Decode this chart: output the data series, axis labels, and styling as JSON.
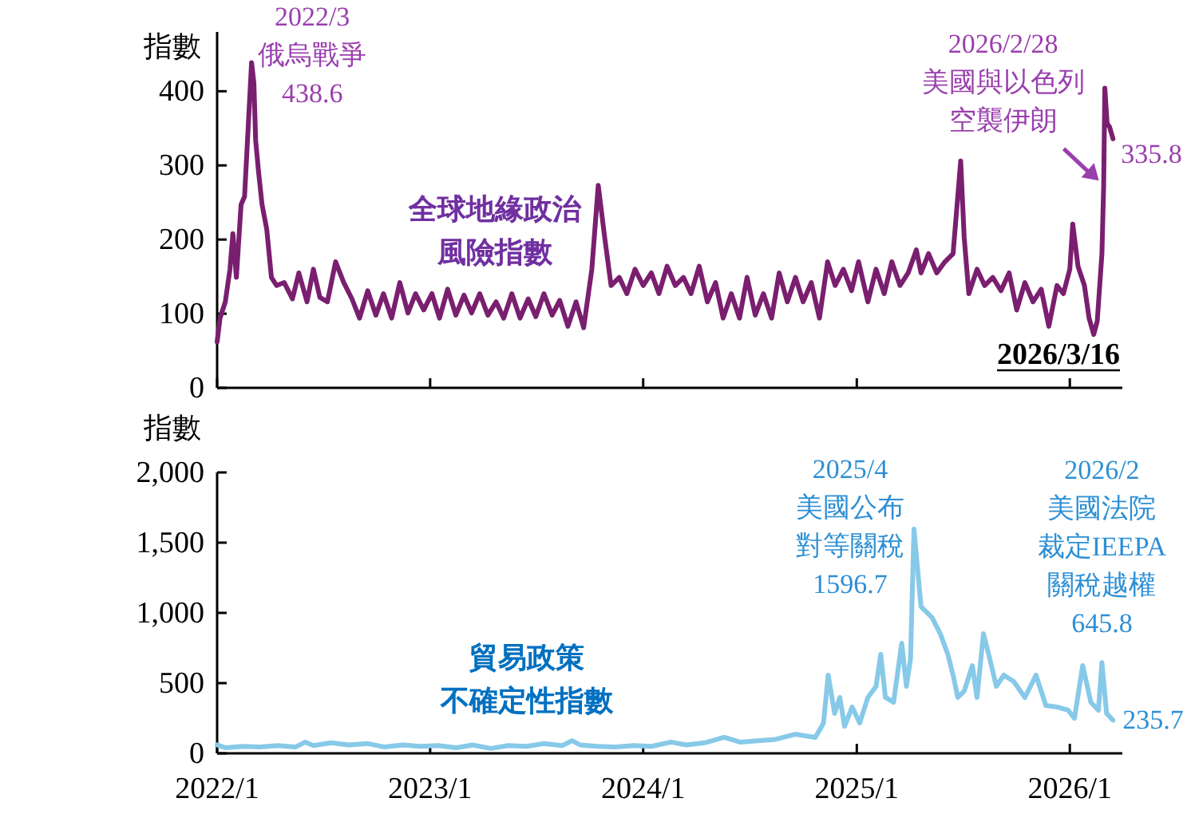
{
  "chart_data": [
    {
      "type": "line",
      "ylabel": "指數",
      "xlim": [
        "2022-01-01",
        "2026-04-01"
      ],
      "ylim": [
        0,
        480
      ],
      "yticks": [
        0,
        100,
        200,
        300,
        400
      ],
      "xticks": [
        {
          "value": "2022-01-01",
          "label": null
        },
        {
          "value": "2023-01-01",
          "label": null
        },
        {
          "value": "2024-01-01",
          "label": null
        },
        {
          "value": "2025-01-01",
          "label": null
        },
        {
          "value": "2026-01-01",
          "label": null
        }
      ],
      "tick_labels": "y",
      "grid": false,
      "annotations": [
        {
          "text": "2022/3\n俄烏戰爭\n438.6",
          "x": "2022-03-01",
          "y": 438.6
        },
        {
          "text": "2026/2/28\n美國與以色列空襲伊朗",
          "x": "2026-02-28",
          "y": 273
        },
        {
          "text": "335.8",
          "x": "2026-03-16",
          "y": 335.8
        },
        "2026/3/16"
      ],
      "series": [
        {
          "name": "全球地緣政治風險指數",
          "color": "#7a1f6f",
          "x": [
            "2022-01-01",
            "2022-01-06",
            "2022-01-15",
            "2022-01-23",
            "2022-01-28",
            "2022-02-03",
            "2022-02-11",
            "2022-02-17",
            "2022-03-01",
            "2022-03-05",
            "2022-03-08",
            "2022-03-13",
            "2022-03-19",
            "2022-03-27",
            "2022-04-04",
            "2022-04-13",
            "2022-04-26",
            "2022-05-10",
            "2022-05-21",
            "2022-06-04",
            "2022-06-15",
            "2022-06-26",
            "2022-07-09",
            "2022-07-23",
            "2022-08-06",
            "2022-08-20",
            "2022-09-02",
            "2022-09-16",
            "2022-09-30",
            "2022-10-13",
            "2022-10-27",
            "2022-11-10",
            "2022-11-24",
            "2022-12-07",
            "2022-12-21",
            "2023-01-04",
            "2023-01-17",
            "2023-01-31",
            "2023-02-14",
            "2023-02-28",
            "2023-03-13",
            "2023-03-27",
            "2023-04-10",
            "2023-04-24",
            "2023-05-07",
            "2023-05-21",
            "2023-06-04",
            "2023-06-18",
            "2023-07-01",
            "2023-07-15",
            "2023-07-29",
            "2023-08-11",
            "2023-08-25",
            "2023-09-08",
            "2023-09-21",
            "2023-10-05",
            "2023-10-16",
            "2023-10-27",
            "2023-11-07",
            "2023-11-21",
            "2023-12-04",
            "2023-12-18",
            "2024-01-01",
            "2024-01-15",
            "2024-01-28",
            "2024-02-11",
            "2024-02-25",
            "2024-03-10",
            "2024-03-23",
            "2024-04-06",
            "2024-04-20",
            "2024-05-04",
            "2024-05-17",
            "2024-05-31",
            "2024-06-14",
            "2024-06-27",
            "2024-07-11",
            "2024-07-25",
            "2024-08-08",
            "2024-08-21",
            "2024-09-04",
            "2024-09-18",
            "2024-10-01",
            "2024-10-15",
            "2024-10-29",
            "2024-11-12",
            "2024-11-25",
            "2024-12-09",
            "2024-12-23",
            "2025-01-04",
            "2025-01-20",
            "2025-02-03",
            "2025-02-17",
            "2025-03-02",
            "2025-03-16",
            "2025-03-30",
            "2025-04-13",
            "2025-04-21",
            "2025-05-04",
            "2025-05-18",
            "2025-06-01",
            "2025-06-15",
            "2025-06-23",
            "2025-06-28",
            "2025-07-04",
            "2025-07-12",
            "2025-07-26",
            "2025-08-08",
            "2025-08-22",
            "2025-09-05",
            "2025-09-19",
            "2025-10-02",
            "2025-10-16",
            "2025-10-30",
            "2025-11-13",
            "2025-11-26",
            "2025-12-10",
            "2025-12-21",
            "2026-01-01",
            "2026-01-06",
            "2026-01-15",
            "2026-01-26",
            "2026-02-03",
            "2026-02-11",
            "2026-02-17",
            "2026-02-25",
            "2026-02-28",
            "2026-03-02",
            "2026-03-06",
            "2026-03-10",
            "2026-03-16"
          ],
          "values": [
            62,
            94,
            116,
            160,
            208,
            149,
            247,
            258,
            438.6,
            411,
            334,
            291,
            247,
            214,
            149,
            138,
            142,
            120,
            155,
            116,
            160,
            122,
            116,
            170,
            142,
            120,
            94,
            131,
            98,
            127,
            94,
            142,
            101,
            127,
            105,
            127,
            94,
            133,
            98,
            125,
            101,
            127,
            98,
            116,
            94,
            127,
            94,
            120,
            96,
            127,
            98,
            118,
            83,
            116,
            81,
            160,
            273,
            203,
            138,
            149,
            127,
            160,
            138,
            155,
            127,
            164,
            138,
            149,
            127,
            164,
            116,
            142,
            94,
            127,
            94,
            149,
            98,
            127,
            94,
            155,
            116,
            149,
            116,
            142,
            94,
            170,
            138,
            160,
            131,
            170,
            116,
            160,
            127,
            170,
            138,
            155,
            186,
            155,
            181,
            155,
            170,
            181,
            258,
            306,
            203,
            127,
            160,
            138,
            149,
            131,
            155,
            105,
            142,
            116,
            133,
            83,
            138,
            127,
            160,
            221,
            164,
            138,
            94,
            72,
            90,
            181,
            273,
            404,
            356,
            352,
            335.8
          ]
        }
      ]
    },
    {
      "type": "line",
      "ylabel": "指數",
      "xlim": [
        "2022-01-01",
        "2026-04-01"
      ],
      "ylim": [
        0,
        2000
      ],
      "yticks": [
        0,
        500,
        {
          "value": 1000,
          "label": "1,000"
        },
        {
          "value": 1500,
          "label": "1,500"
        },
        {
          "value": 2000,
          "label": "2,000"
        }
      ],
      "xticks": [
        {
          "value": "2022-01-01",
          "label": "2022/1"
        },
        {
          "value": "2023-01-01",
          "label": "2023/1"
        },
        {
          "value": "2024-01-01",
          "label": "2024/1"
        },
        {
          "value": "2025-01-01",
          "label": "2025/1"
        },
        {
          "value": "2026-01-01",
          "label": "2026/1"
        }
      ],
      "grid": false,
      "annotations": [
        {
          "text": "2025/4\n美國公布對等關稅\n1596.7",
          "x": "2025-04-09",
          "y": 1596.7
        },
        {
          "text": "2026/2\n美國法院裁定IEEPA關稅越權\n645.8",
          "x": "2026-02-25",
          "y": 645.8
        },
        {
          "text": "235.7",
          "x": "2026-03-16",
          "y": 235.7
        }
      ],
      "series": [
        {
          "name": "貿易政策不確定性指數",
          "color": "#87c9e8",
          "x": [
            "2022-01-01",
            "2022-01-15",
            "2022-02-15",
            "2022-03-15",
            "2022-04-15",
            "2022-05-15",
            "2022-06-01",
            "2022-06-15",
            "2022-07-15",
            "2022-08-15",
            "2022-09-15",
            "2022-10-15",
            "2022-11-15",
            "2022-12-15",
            "2023-01-15",
            "2023-02-15",
            "2023-03-15",
            "2023-04-15",
            "2023-05-15",
            "2023-06-15",
            "2023-07-15",
            "2023-08-15",
            "2023-09-01",
            "2023-09-15",
            "2023-10-15",
            "2023-11-15",
            "2023-12-15",
            "2024-01-15",
            "2024-02-18",
            "2024-03-15",
            "2024-04-15",
            "2024-05-19",
            "2024-06-15",
            "2024-07-15",
            "2024-08-15",
            "2024-09-17",
            "2024-10-22",
            "2024-11-05",
            "2024-11-13",
            "2024-11-24",
            "2024-12-03",
            "2024-12-11",
            "2024-12-24",
            "2025-01-06",
            "2025-01-20",
            "2025-02-03",
            "2025-02-11",
            "2025-02-19",
            "2025-03-05",
            "2025-03-19",
            "2025-03-27",
            "2025-04-03",
            "2025-04-09",
            "2025-04-21",
            "2025-05-10",
            "2025-05-24",
            "2025-06-06",
            "2025-06-15",
            "2025-06-23",
            "2025-07-04",
            "2025-07-18",
            "2025-07-26",
            "2025-08-06",
            "2025-08-17",
            "2025-08-28",
            "2025-09-10",
            "2025-09-27",
            "2025-10-16",
            "2025-11-04",
            "2025-11-21",
            "2025-12-10",
            "2025-12-29",
            "2026-01-09",
            "2026-01-23",
            "2026-02-06",
            "2026-02-19",
            "2026-02-25",
            "2026-03-05",
            "2026-03-16"
          ],
          "values": [
            60,
            40,
            50,
            45,
            55,
            45,
            80,
            55,
            75,
            60,
            70,
            45,
            60,
            50,
            55,
            40,
            60,
            35,
            55,
            50,
            70,
            55,
            90,
            60,
            50,
            45,
            55,
            50,
            80,
            60,
            75,
            114,
            80,
            90,
            100,
            136,
            114,
            216,
            557,
            284,
            398,
            193,
            330,
            216,
            398,
            477,
            705,
            398,
            364,
            784,
            477,
            670,
            1596.7,
            1045,
            966,
            852,
            705,
            557,
            398,
            443,
            625,
            398,
            852,
            670,
            477,
            557,
            511,
            398,
            557,
            341,
            330,
            307,
            250,
            625,
            364,
            307,
            645.8,
            284,
            235.7
          ]
        }
      ]
    }
  ]
}
